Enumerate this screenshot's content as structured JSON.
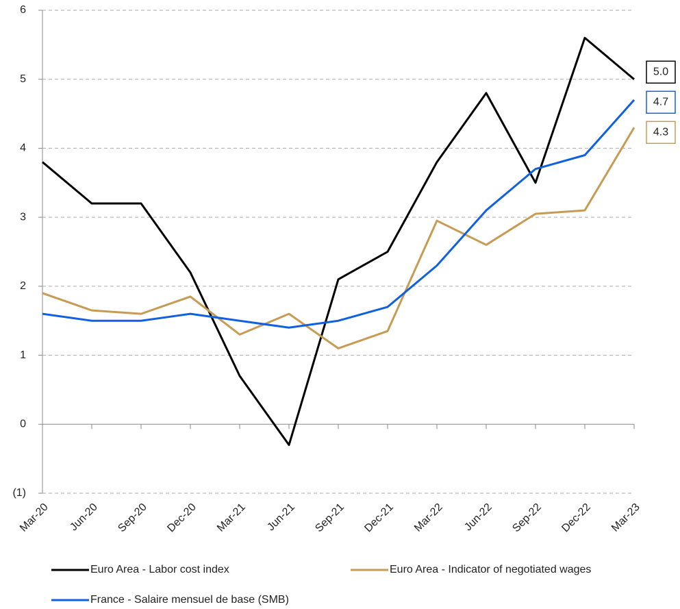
{
  "chart_data": {
    "type": "line",
    "categories": [
      "Mar-20",
      "Jun-20",
      "Sep-20",
      "Dec-20",
      "Mar-21",
      "Jun-21",
      "Sep-21",
      "Dec-21",
      "Mar-22",
      "Jun-22",
      "Sep-22",
      "Dec-22",
      "Mar-23"
    ],
    "series": [
      {
        "name": "Euro Area - Labor cost index",
        "color": "#000000",
        "values": [
          3.8,
          3.2,
          3.2,
          2.2,
          0.7,
          -0.3,
          2.1,
          2.5,
          3.8,
          4.8,
          3.5,
          5.6,
          5.0
        ],
        "value_labels": [
          null,
          null,
          null,
          null,
          null,
          null,
          null,
          null,
          null,
          null,
          null,
          null,
          "5.0"
        ]
      },
      {
        "name": "Euro Area - Indicator of negotiated wages",
        "color": "#c89b55",
        "values": [
          1.9,
          1.65,
          1.6,
          1.85,
          1.3,
          1.6,
          1.1,
          1.35,
          2.95,
          2.6,
          3.05,
          3.1,
          4.3
        ],
        "value_labels": [
          null,
          null,
          null,
          null,
          null,
          null,
          null,
          null,
          null,
          null,
          null,
          null,
          "4.3"
        ]
      },
      {
        "name": "France - Salaire mensuel de base (SMB)",
        "color": "#1060e0",
        "values": [
          1.6,
          1.5,
          1.5,
          1.6,
          1.5,
          1.4,
          1.5,
          1.7,
          2.3,
          3.1,
          3.7,
          3.9,
          4.7
        ],
        "value_labels": [
          null,
          null,
          null,
          null,
          null,
          null,
          null,
          null,
          null,
          null,
          null,
          null,
          "4.7"
        ]
      }
    ],
    "ylim": [
      -1,
      6
    ],
    "yticks": [
      {
        "value": -1,
        "label": "(1)"
      },
      0,
      1,
      2,
      3,
      4,
      5,
      6
    ],
    "grid": true
  }
}
